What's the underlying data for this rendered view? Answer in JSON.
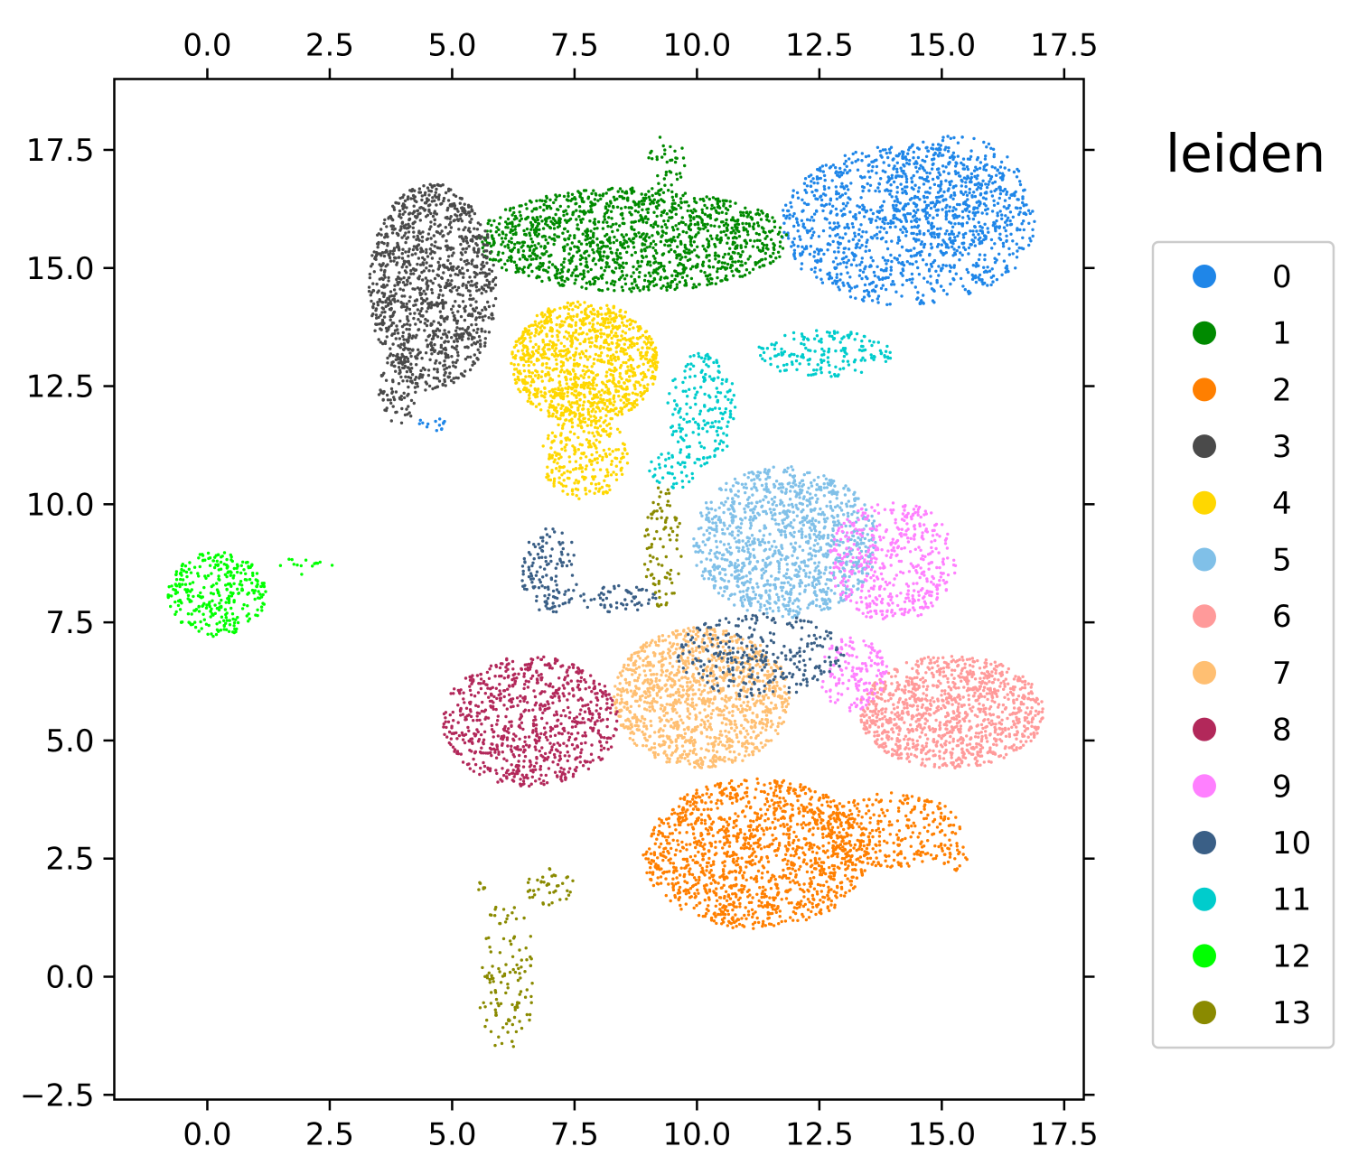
{
  "chart_data": {
    "type": "scatter",
    "title": "",
    "xlabel": "",
    "ylabel": "",
    "xlim": [
      -1.9,
      17.9
    ],
    "ylim": [
      -2.6,
      19.0
    ],
    "x_ticks": [
      "0.0",
      "2.5",
      "5.0",
      "7.5",
      "10.0",
      "12.5",
      "15.0",
      "17.5"
    ],
    "y_ticks": [
      "−2.5",
      "0.0",
      "2.5",
      "5.0",
      "7.5",
      "10.0",
      "12.5",
      "15.0",
      "17.5"
    ],
    "x_tick_values": [
      0,
      2.5,
      5,
      7.5,
      10,
      12.5,
      15,
      17.5
    ],
    "y_tick_values": [
      -2.5,
      0,
      2.5,
      5,
      7.5,
      10,
      12.5,
      15,
      17.5
    ],
    "ticks_on": [
      "top",
      "bottom",
      "left",
      "right"
    ],
    "grid": false,
    "legend": {
      "title": "leiden",
      "placement": "right"
    },
    "series": [
      {
        "name": "0",
        "color": "#1f86e8",
        "regions": [
          {
            "cx": 14.3,
            "cy": 15.9,
            "rx": 2.6,
            "ry": 1.7,
            "n": 1100
          },
          {
            "cx": 15.2,
            "cy": 16.6,
            "rx": 1.5,
            "ry": 1.2,
            "n": 300
          },
          {
            "cx": 4.6,
            "cy": 11.7,
            "rx": 0.3,
            "ry": 0.2,
            "n": 14
          }
        ]
      },
      {
        "name": "1",
        "color": "#008a00",
        "regions": [
          {
            "cx": 8.7,
            "cy": 15.6,
            "rx": 3.2,
            "ry": 1.1,
            "n": 1400
          },
          {
            "cx": 9.4,
            "cy": 17.3,
            "rx": 0.4,
            "ry": 0.6,
            "n": 35
          }
        ]
      },
      {
        "name": "2",
        "color": "#ff7f00",
        "regions": [
          {
            "cx": 11.2,
            "cy": 2.6,
            "rx": 2.3,
            "ry": 1.6,
            "n": 1350
          },
          {
            "cx": 14.0,
            "cy": 3.1,
            "rx": 1.4,
            "ry": 0.8,
            "n": 300
          },
          {
            "cx": 15.3,
            "cy": 2.5,
            "rx": 0.3,
            "ry": 0.3,
            "n": 20
          }
        ]
      },
      {
        "name": "3",
        "color": "#4a4a4a",
        "regions": [
          {
            "cx": 4.6,
            "cy": 14.6,
            "rx": 1.3,
            "ry": 2.2,
            "n": 1200
          },
          {
            "cx": 3.9,
            "cy": 12.4,
            "rx": 0.4,
            "ry": 0.8,
            "n": 80
          }
        ]
      },
      {
        "name": "4",
        "color": "#ffd700",
        "regions": [
          {
            "cx": 7.7,
            "cy": 13.0,
            "rx": 1.5,
            "ry": 1.3,
            "n": 1100
          },
          {
            "cx": 7.7,
            "cy": 11.0,
            "rx": 0.9,
            "ry": 0.9,
            "n": 250
          }
        ]
      },
      {
        "name": "5",
        "color": "#80c0e8",
        "regions": [
          {
            "cx": 11.8,
            "cy": 9.2,
            "rx": 1.9,
            "ry": 1.6,
            "n": 1150
          }
        ]
      },
      {
        "name": "6",
        "color": "#ff9a9a",
        "regions": [
          {
            "cx": 15.2,
            "cy": 5.6,
            "rx": 1.9,
            "ry": 1.2,
            "n": 1100
          }
        ]
      },
      {
        "name": "7",
        "color": "#ffbf72",
        "regions": [
          {
            "cx": 10.1,
            "cy": 5.9,
            "rx": 1.8,
            "ry": 1.5,
            "n": 1200
          }
        ]
      },
      {
        "name": "8",
        "color": "#b2285a",
        "regions": [
          {
            "cx": 6.6,
            "cy": 5.4,
            "rx": 1.8,
            "ry": 1.4,
            "n": 800
          }
        ]
      },
      {
        "name": "9",
        "color": "#ff80ff",
        "regions": [
          {
            "cx": 14.0,
            "cy": 8.8,
            "rx": 1.3,
            "ry": 1.3,
            "n": 450
          },
          {
            "cx": 13.2,
            "cy": 6.4,
            "rx": 0.7,
            "ry": 0.8,
            "n": 150
          }
        ]
      },
      {
        "name": "10",
        "color": "#3a5f86",
        "regions": [
          {
            "cx": 7.0,
            "cy": 8.6,
            "rx": 0.6,
            "ry": 0.9,
            "n": 130
          },
          {
            "cx": 8.4,
            "cy": 8.0,
            "rx": 0.8,
            "ry": 0.3,
            "n": 60
          },
          {
            "cx": 11.3,
            "cy": 6.8,
            "rx": 1.7,
            "ry": 0.9,
            "n": 300
          }
        ]
      },
      {
        "name": "11",
        "color": "#00cccc",
        "regions": [
          {
            "cx": 10.1,
            "cy": 12.0,
            "rx": 0.7,
            "ry": 1.2,
            "n": 190
          },
          {
            "cx": 12.6,
            "cy": 13.2,
            "rx": 1.4,
            "ry": 0.5,
            "n": 170
          },
          {
            "cx": 9.5,
            "cy": 10.7,
            "rx": 0.5,
            "ry": 0.4,
            "n": 40
          }
        ]
      },
      {
        "name": "12",
        "color": "#00ff00",
        "regions": [
          {
            "cx": 0.2,
            "cy": 8.1,
            "rx": 1.0,
            "ry": 0.9,
            "n": 320
          },
          {
            "cx": 2.0,
            "cy": 8.7,
            "rx": 0.6,
            "ry": 0.2,
            "n": 14
          }
        ]
      },
      {
        "name": "13",
        "color": "#8a8a00",
        "regions": [
          {
            "cx": 6.1,
            "cy": 0.0,
            "rx": 0.6,
            "ry": 1.6,
            "n": 120
          },
          {
            "cx": 7.0,
            "cy": 1.9,
            "rx": 0.5,
            "ry": 0.4,
            "n": 40
          },
          {
            "cx": 9.3,
            "cy": 9.1,
            "rx": 0.4,
            "ry": 1.3,
            "n": 90
          },
          {
            "cx": 5.6,
            "cy": 1.9,
            "rx": 0.1,
            "ry": 0.1,
            "n": 6
          }
        ]
      }
    ]
  }
}
